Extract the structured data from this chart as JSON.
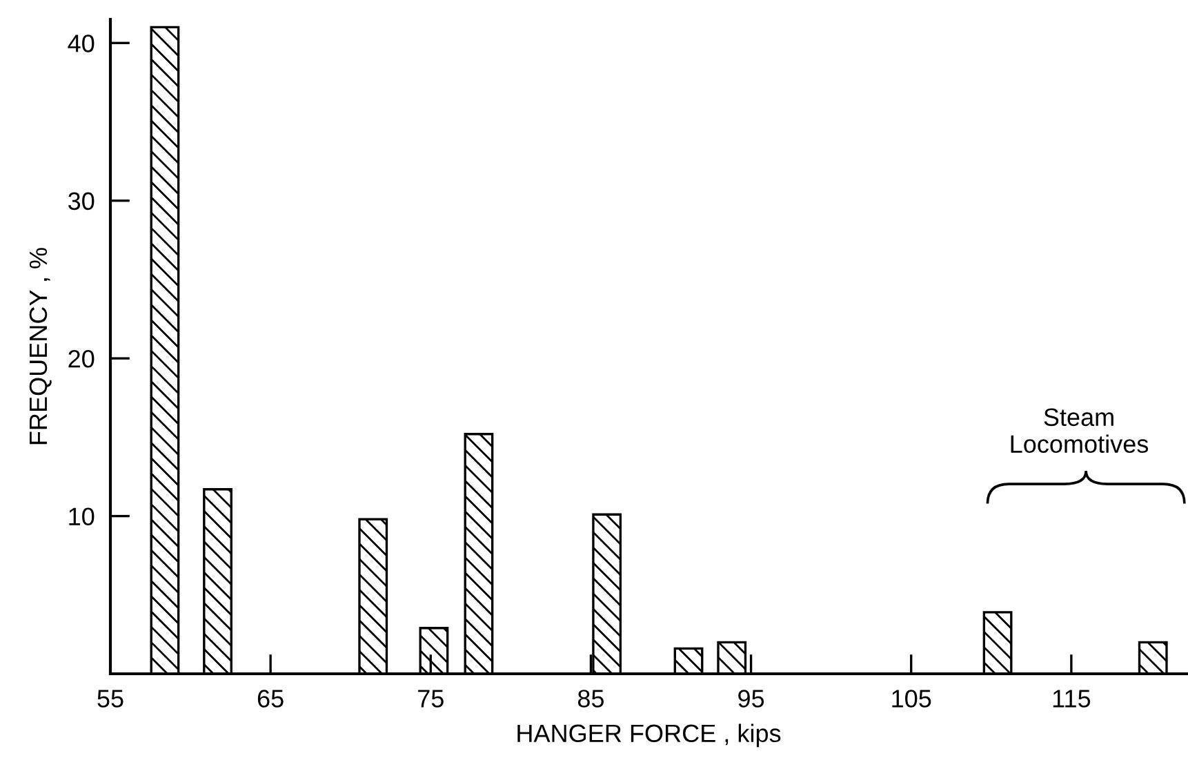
{
  "chart_data": {
    "type": "bar",
    "xlabel": "HANGER FORCE , kips",
    "ylabel": "FREQUENCY , %",
    "x": [
      58.4,
      61.7,
      71.4,
      75.2,
      78.0,
      86.0,
      91.1,
      93.8,
      110.4,
      120.1
    ],
    "values": [
      41,
      11.7,
      9.8,
      2.9,
      15.2,
      10.1,
      1.6,
      2.0,
      3.9,
      2.0
    ],
    "color": "#000000",
    "xlim": [
      55,
      122.2
    ],
    "xticks": [
      55,
      65,
      75,
      85,
      95,
      105,
      115
    ],
    "ylim": [
      0,
      41.5
    ],
    "yticks": [
      10,
      20,
      30,
      40
    ],
    "annotations": [
      "Steam\nLocomotives"
    ],
    "grid": false,
    "legend": false
  }
}
